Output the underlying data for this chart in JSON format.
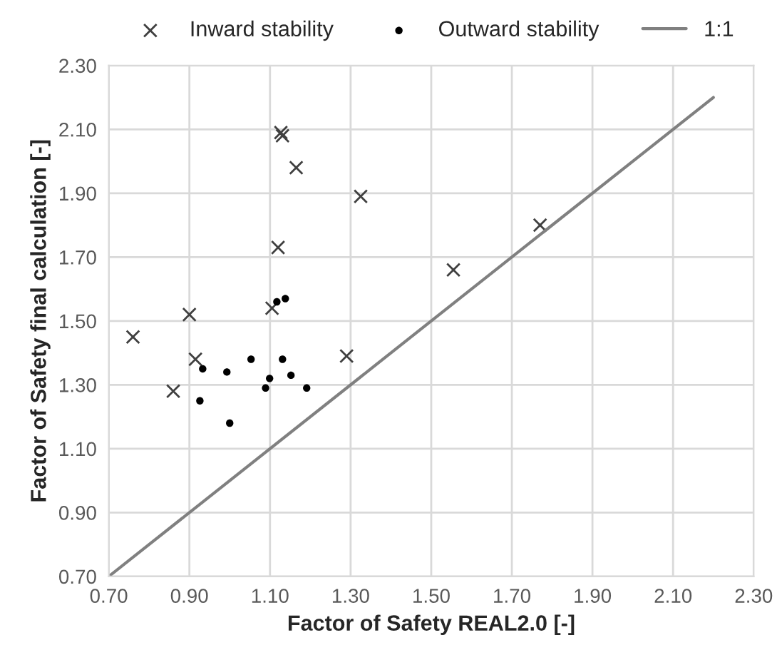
{
  "chart_data": {
    "type": "scatter",
    "xlabel": "Factor of Safety REAL2.0 [-]",
    "ylabel": "Factor of Safety final calculation [-]",
    "xlim": [
      0.7,
      2.3
    ],
    "ylim": [
      0.7,
      2.3
    ],
    "xticks": [
      {
        "value": 0.7,
        "label": "0.70"
      },
      {
        "value": 0.9,
        "label": "0.90"
      },
      {
        "value": 1.1,
        "label": "1.10"
      },
      {
        "value": 1.3,
        "label": "1.30"
      },
      {
        "value": 1.5,
        "label": "1.50"
      },
      {
        "value": 1.7,
        "label": "1.70"
      },
      {
        "value": 1.9,
        "label": "1.90"
      },
      {
        "value": 2.1,
        "label": "2.10"
      },
      {
        "value": 2.3,
        "label": "2.30"
      }
    ],
    "yticks": [
      {
        "value": 0.7,
        "label": "0.70"
      },
      {
        "value": 0.9,
        "label": "0.90"
      },
      {
        "value": 1.1,
        "label": "1.10"
      },
      {
        "value": 1.3,
        "label": "1.30"
      },
      {
        "value": 1.5,
        "label": "1.50"
      },
      {
        "value": 1.7,
        "label": "1.70"
      },
      {
        "value": 1.9,
        "label": "1.90"
      },
      {
        "value": 2.1,
        "label": "2.10"
      },
      {
        "value": 2.3,
        "label": "2.30"
      }
    ],
    "grid": true,
    "legend": "top",
    "series": [
      {
        "name": "Inward stability",
        "marker": "cross",
        "color": "#404040",
        "x": [
          0.76,
          0.86,
          0.9,
          0.915,
          1.105,
          1.12,
          1.127,
          1.131,
          1.165,
          1.29,
          1.325,
          1.555,
          1.77
        ],
        "values": [
          1.45,
          1.28,
          1.52,
          1.38,
          1.54,
          1.73,
          2.09,
          2.08,
          1.98,
          1.39,
          1.89,
          1.66,
          1.8
        ]
      },
      {
        "name": "Outward stability",
        "marker": "circle",
        "color": "#000000",
        "x": [
          1.117,
          1.138,
          0.933,
          0.993,
          1.053,
          1.131,
          1.099,
          1.089,
          1.152,
          1.191,
          0.926,
          1.0
        ],
        "values": [
          1.56,
          1.57,
          1.35,
          1.34,
          1.38,
          1.38,
          1.32,
          1.29,
          1.33,
          1.29,
          1.25,
          1.18
        ]
      },
      {
        "name": "1:1",
        "type": "line",
        "marker": "none",
        "line_style": "solid",
        "color": "#808080",
        "x": [
          0.7,
          2.2
        ],
        "values": [
          0.7,
          2.2
        ]
      }
    ]
  }
}
